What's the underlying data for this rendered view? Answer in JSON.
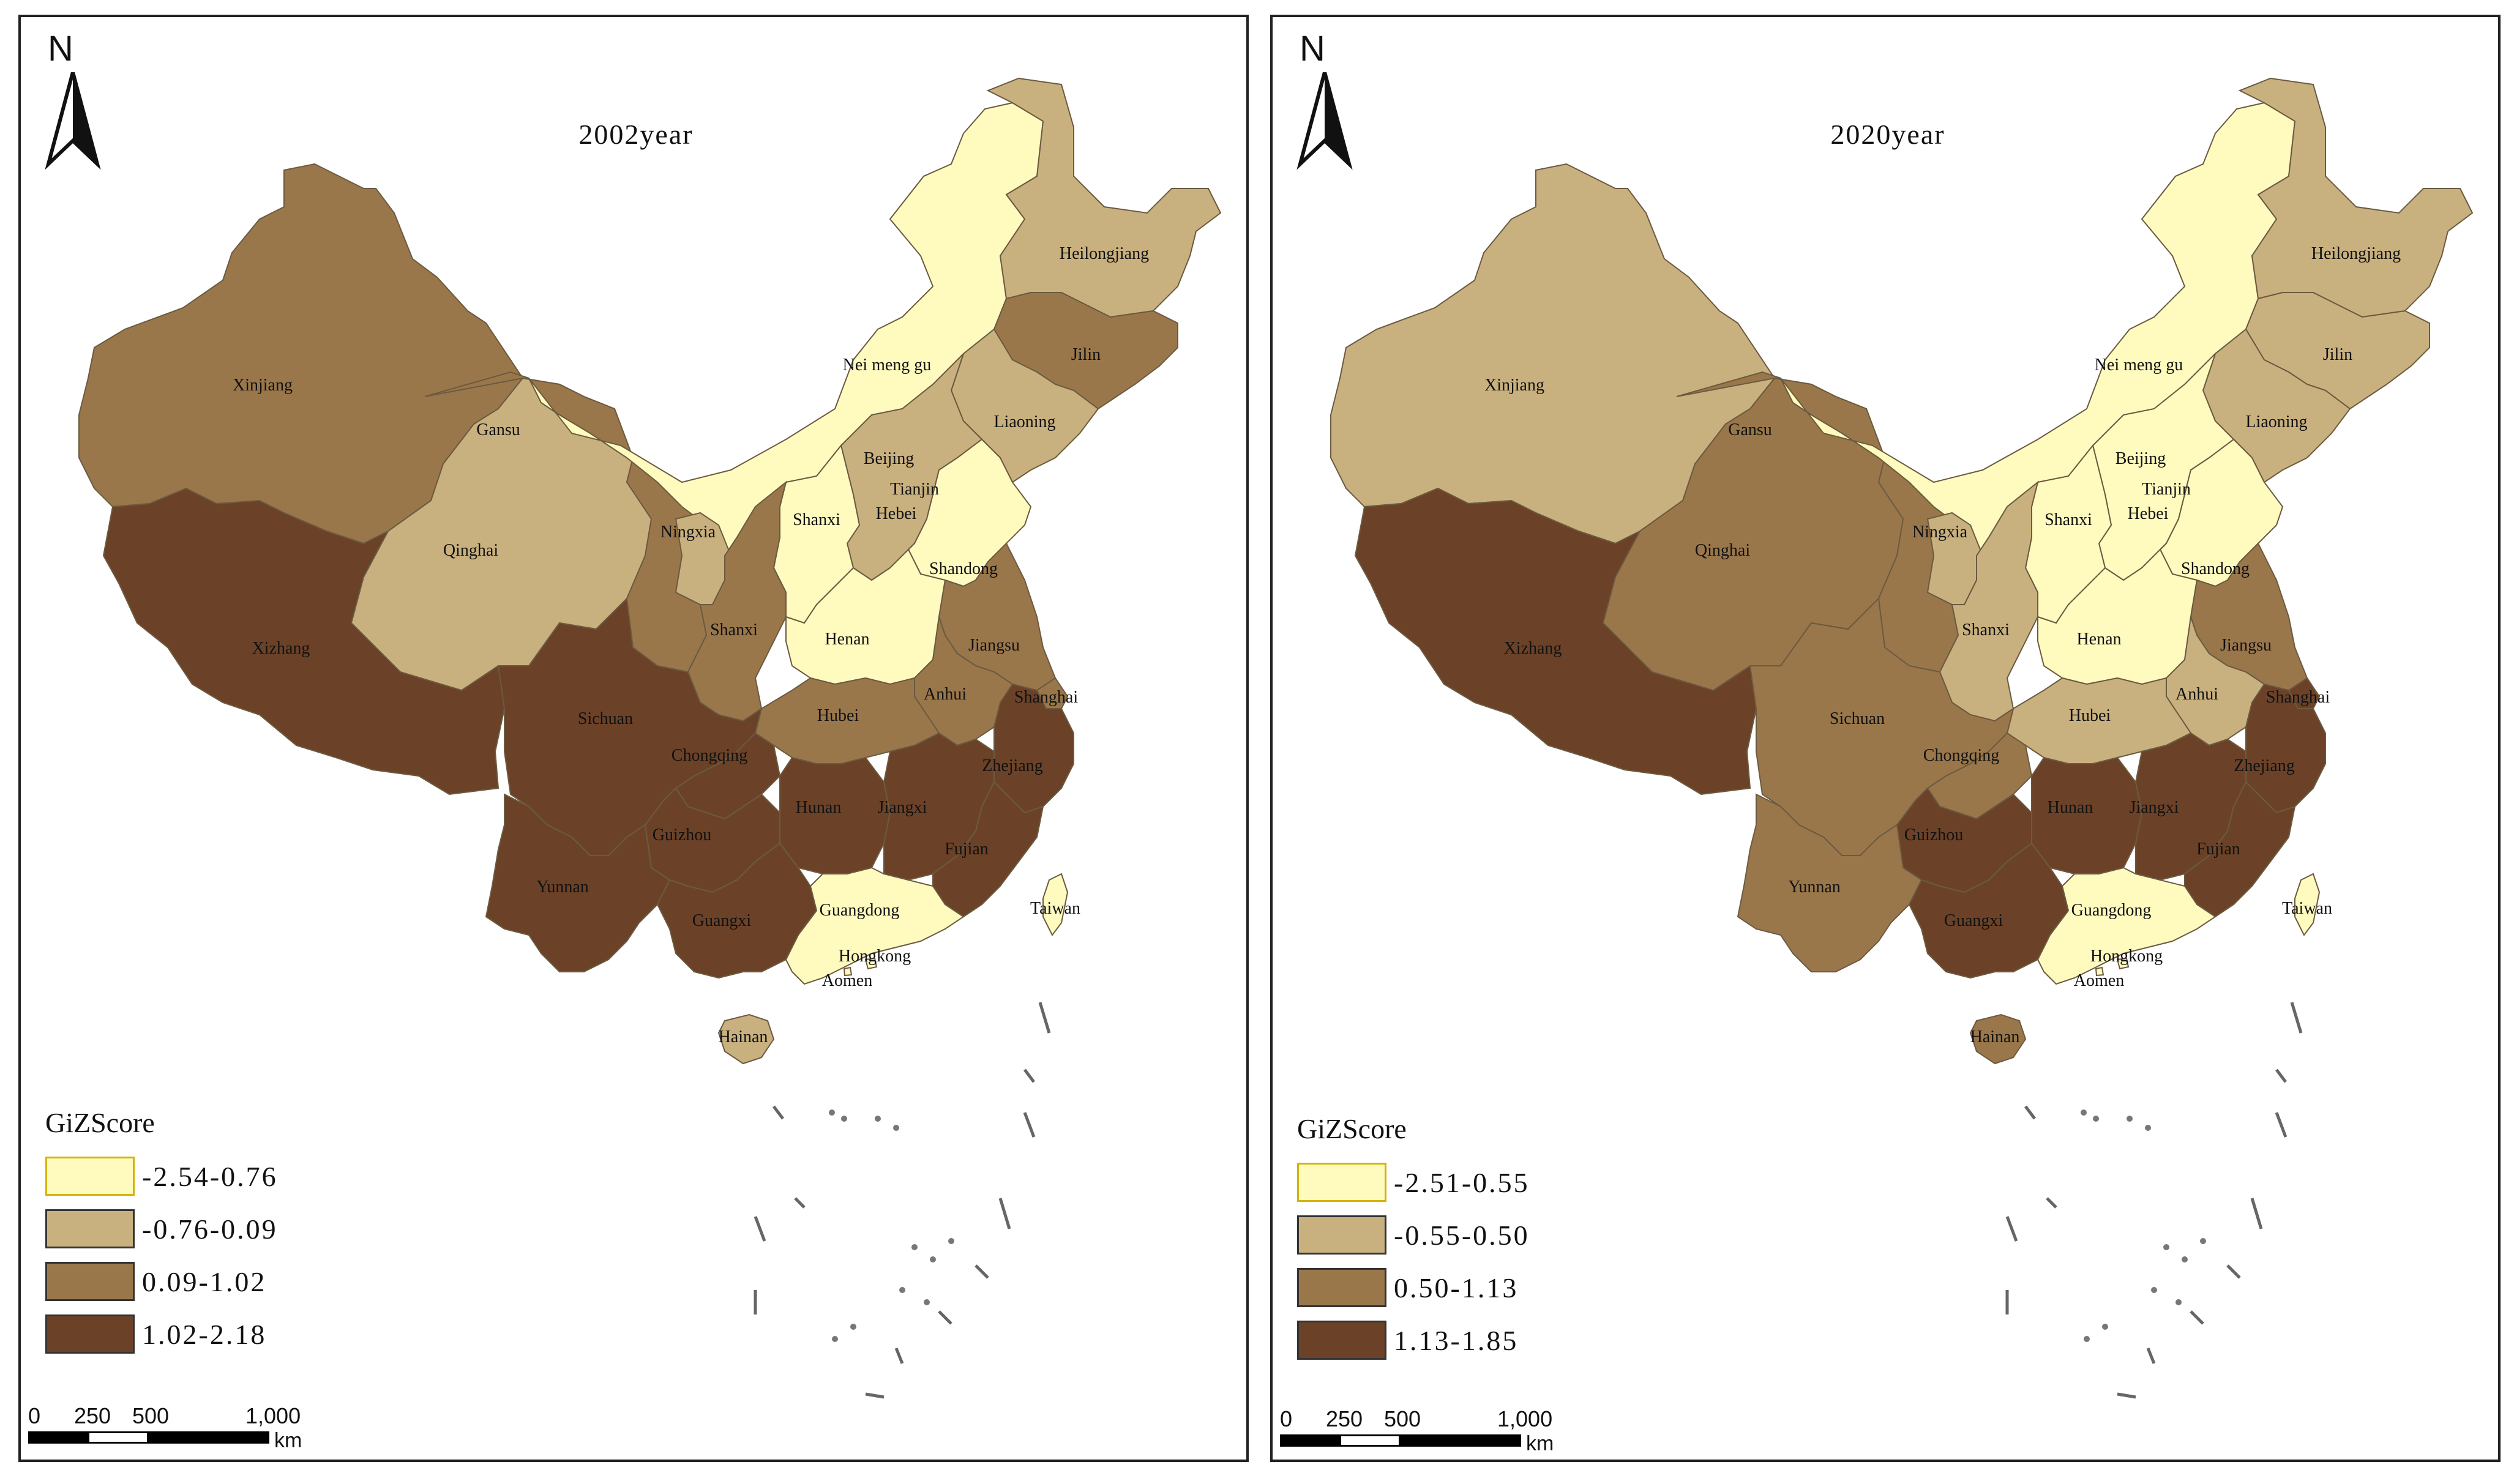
{
  "panels": [
    {
      "id": "2002",
      "title": "2002year",
      "north_label": "N",
      "legend": {
        "title": "GiZScore",
        "classes": [
          {
            "label": "-2.54-0.76",
            "color": "#fffbbf"
          },
          {
            "label": "-0.76-0.09",
            "color": "#c9b17f"
          },
          {
            "label": "0.09-1.02",
            "color": "#9a774b"
          },
          {
            "label": "1.02-2.18",
            "color": "#6b4228"
          }
        ]
      },
      "scale": {
        "ticks": [
          "0",
          "250",
          "500",
          "1,000"
        ],
        "unit": "km"
      },
      "provinces": {
        "Xinjiang": 2,
        "Xizhang": 3,
        "Qinghai": 1,
        "Gansu": 2,
        "Nei meng gu": 0,
        "Heilongjiang": 1,
        "Jilin": 2,
        "Liaoning": 1,
        "Beijing": 1,
        "Tianjin": 1,
        "Hebei": 1,
        "Shanxi": 0,
        "Ningxia": 1,
        "Shaanxi": 2,
        "Shandong": 0,
        "Henan": 0,
        "Jiangsu": 2,
        "Shanghai": 2,
        "Anhui": 2,
        "Hubei": 2,
        "Sichuan": 3,
        "Chongqing": 3,
        "Guizhou": 3,
        "Yunnan": 3,
        "Hunan": 3,
        "Jiangxi": 3,
        "Zhejiang": 3,
        "Fujian": 3,
        "Guangxi": 3,
        "Guangdong": 0,
        "Hainan": 1,
        "Taiwan": 0,
        "Hongkong": 0,
        "Aomen": 0
      }
    },
    {
      "id": "2020",
      "title": "2020year",
      "north_label": "N",
      "legend": {
        "title": "GiZScore",
        "classes": [
          {
            "label": "-2.51-0.55",
            "color": "#fffbbf"
          },
          {
            "label": "-0.55-0.50",
            "color": "#c9b17f"
          },
          {
            "label": "0.50-1.13",
            "color": "#9a774b"
          },
          {
            "label": "1.13-1.85",
            "color": "#6b4228"
          }
        ]
      },
      "scale": {
        "ticks": [
          "0",
          "250",
          "500",
          "1,000"
        ],
        "unit": "km"
      },
      "provinces": {
        "Xinjiang": 1,
        "Xizhang": 3,
        "Qinghai": 2,
        "Gansu": 2,
        "Nei meng gu": 0,
        "Heilongjiang": 1,
        "Jilin": 1,
        "Liaoning": 1,
        "Beijing": 0,
        "Tianjin": 1,
        "Hebei": 0,
        "Shanxi": 0,
        "Ningxia": 1,
        "Shaanxi": 1,
        "Shandong": 0,
        "Henan": 0,
        "Jiangsu": 2,
        "Shanghai": 3,
        "Anhui": 1,
        "Hubei": 1,
        "Sichuan": 2,
        "Chongqing": 2,
        "Guizhou": 3,
        "Yunnan": 2,
        "Hunan": 3,
        "Jiangxi": 3,
        "Zhejiang": 3,
        "Fujian": 3,
        "Guangxi": 3,
        "Guangdong": 0,
        "Hainan": 2,
        "Taiwan": 0,
        "Hongkong": 0,
        "Aomen": 0
      }
    }
  ],
  "province_labels": {
    "Xinjiang": "Xinjiang",
    "Xizhang": "Xizhang",
    "Qinghai": "Qinghai",
    "Gansu": "Gansu",
    "Nei meng gu": "Nei meng gu",
    "Heilongjiang": "Heilongjiang",
    "Jilin": "Jilin",
    "Liaoning": "Liaoning",
    "Beijing": "Beijing",
    "Tianjin": "Tianjin",
    "Hebei": "Hebei",
    "Shanxi": "Shanxi",
    "Ningxia": "Ningxia",
    "Shaanxi": "Shanxi",
    "Shandong": "Shandong",
    "Henan": "Henan",
    "Jiangsu": "Jiangsu",
    "Shanghai": "Shanghai",
    "Anhui": "Anhui",
    "Hubei": "Hubei",
    "Sichuan": "Sichuan",
    "Chongqing": "Chongqing",
    "Guizhou": "Guizhou",
    "Yunnan": "Yunnan",
    "Hunan": "Hunan",
    "Jiangxi": "Jiangxi",
    "Zhejiang": "Zhejiang",
    "Fujian": "Fujian",
    "Guangxi": "Guangxi",
    "Guangdong": "Guangdong",
    "Hainan": "Hainan",
    "Taiwan": "Taiwan",
    "Hongkong": "Hongkong",
    "Aomen": "Aomen"
  }
}
